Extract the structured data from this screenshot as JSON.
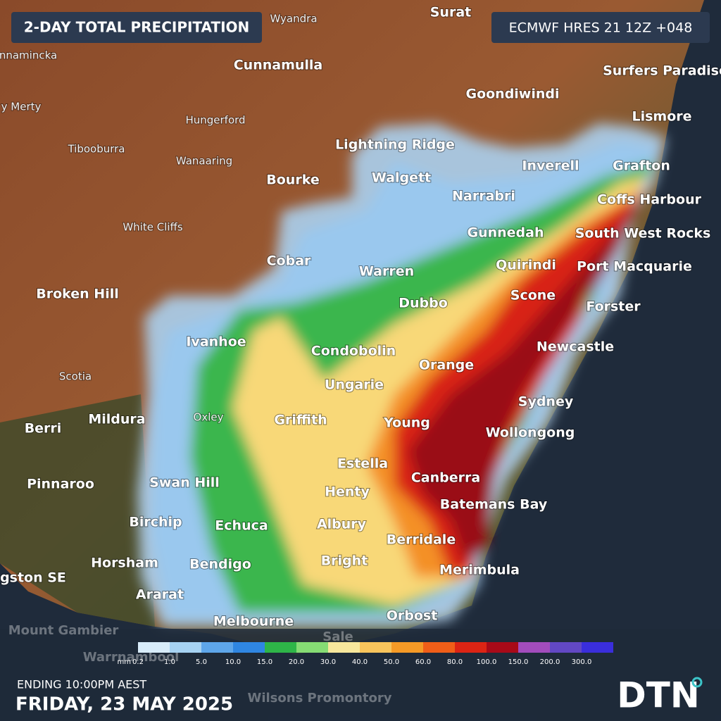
{
  "header": {
    "title": "2-DAY TOTAL PRECIPITATION",
    "model": "ECMWF HRES 21 12Z +048"
  },
  "places": [
    {
      "name": "Surat",
      "kind": "major"
    },
    {
      "name": "Cunnamulla",
      "kind": "major"
    },
    {
      "name": "Surfers Paradise",
      "kind": "major"
    },
    {
      "name": "Goondiwindi",
      "kind": "major"
    },
    {
      "name": "Lismore",
      "kind": "major"
    },
    {
      "name": "Lightning Ridge",
      "kind": "major"
    },
    {
      "name": "Inverell",
      "kind": "major"
    },
    {
      "name": "Grafton",
      "kind": "major"
    },
    {
      "name": "Bourke",
      "kind": "major"
    },
    {
      "name": "Walgett",
      "kind": "major"
    },
    {
      "name": "Narrabri",
      "kind": "major"
    },
    {
      "name": "Coffs Harbour",
      "kind": "major"
    },
    {
      "name": "Gunnedah",
      "kind": "major"
    },
    {
      "name": "South West Rocks",
      "kind": "major"
    },
    {
      "name": "Cobar",
      "kind": "major"
    },
    {
      "name": "Warren",
      "kind": "major"
    },
    {
      "name": "Quirindi",
      "kind": "major"
    },
    {
      "name": "Port Macquarie",
      "kind": "major"
    },
    {
      "name": "Broken Hill",
      "kind": "major"
    },
    {
      "name": "Scone",
      "kind": "major"
    },
    {
      "name": "Dubbo",
      "kind": "major"
    },
    {
      "name": "Forster",
      "kind": "major"
    },
    {
      "name": "Ivanhoe",
      "kind": "major"
    },
    {
      "name": "Newcastle",
      "kind": "major"
    },
    {
      "name": "Condobolin",
      "kind": "major"
    },
    {
      "name": "Orange",
      "kind": "major"
    },
    {
      "name": "Ungarie",
      "kind": "major"
    },
    {
      "name": "Sydney",
      "kind": "major"
    },
    {
      "name": "Berri",
      "kind": "major"
    },
    {
      "name": "Mildura",
      "kind": "major"
    },
    {
      "name": "Griffith",
      "kind": "major"
    },
    {
      "name": "Young",
      "kind": "major"
    },
    {
      "name": "Wollongong",
      "kind": "major"
    },
    {
      "name": "Estella",
      "kind": "major"
    },
    {
      "name": "Canberra",
      "kind": "major"
    },
    {
      "name": "Pinnaroo",
      "kind": "major"
    },
    {
      "name": "Swan Hill",
      "kind": "major"
    },
    {
      "name": "Henty",
      "kind": "major"
    },
    {
      "name": "Batemans Bay",
      "kind": "major"
    },
    {
      "name": "Birchip",
      "kind": "major"
    },
    {
      "name": "Echuca",
      "kind": "major"
    },
    {
      "name": "Albury",
      "kind": "major"
    },
    {
      "name": "Berridale",
      "kind": "major"
    },
    {
      "name": "Horsham",
      "kind": "major"
    },
    {
      "name": "Bendigo",
      "kind": "major"
    },
    {
      "name": "Bright",
      "kind": "major"
    },
    {
      "name": "Merimbula",
      "kind": "major"
    },
    {
      "name": "gston SE",
      "kind": "major"
    },
    {
      "name": "Ararat",
      "kind": "major"
    },
    {
      "name": "Melbourne",
      "kind": "major"
    },
    {
      "name": "Orbost",
      "kind": "major"
    },
    {
      "name": "Mount Gambier",
      "kind": "faded"
    },
    {
      "name": "Wyandra",
      "kind": "minor"
    },
    {
      "name": "nnamincka",
      "kind": "minor"
    },
    {
      "name": "y Merty",
      "kind": "minor"
    },
    {
      "name": "Hungerford",
      "kind": "minor"
    },
    {
      "name": "Tibooburra",
      "kind": "minor"
    },
    {
      "name": "Wanaaring",
      "kind": "minor"
    },
    {
      "name": "White Cliffs",
      "kind": "minor"
    },
    {
      "name": "Scotia",
      "kind": "minor"
    },
    {
      "name": "Oxley",
      "kind": "minor"
    },
    {
      "name": "Warrnambool",
      "kind": "faded"
    },
    {
      "name": "Sale",
      "kind": "faded"
    },
    {
      "name": "Wilsons Promontory",
      "kind": "faded"
    }
  ],
  "legend": {
    "unit": "mm",
    "labels": [
      "0.2",
      "1.0",
      "5.0",
      "10.0",
      "15.0",
      "20.0",
      "30.0",
      "40.0",
      "50.0",
      "60.0",
      "80.0",
      "100.0",
      "150.0",
      "200.0",
      "300.0"
    ],
    "colors": [
      "#d8ecfa",
      "#a6d2f2",
      "#5ea6ea",
      "#2f86e2",
      "#2eb548",
      "#86dc74",
      "#f7e79c",
      "#f8c45c",
      "#f59a26",
      "#f05e18",
      "#dc2414",
      "#a80a18",
      "#a24cbc",
      "#6248c4",
      "#3a2edc"
    ]
  },
  "footer": {
    "ending": "ENDING 10:00PM AEST",
    "date": "FRIDAY, 23 MAY 2025",
    "logo": "DTN"
  }
}
